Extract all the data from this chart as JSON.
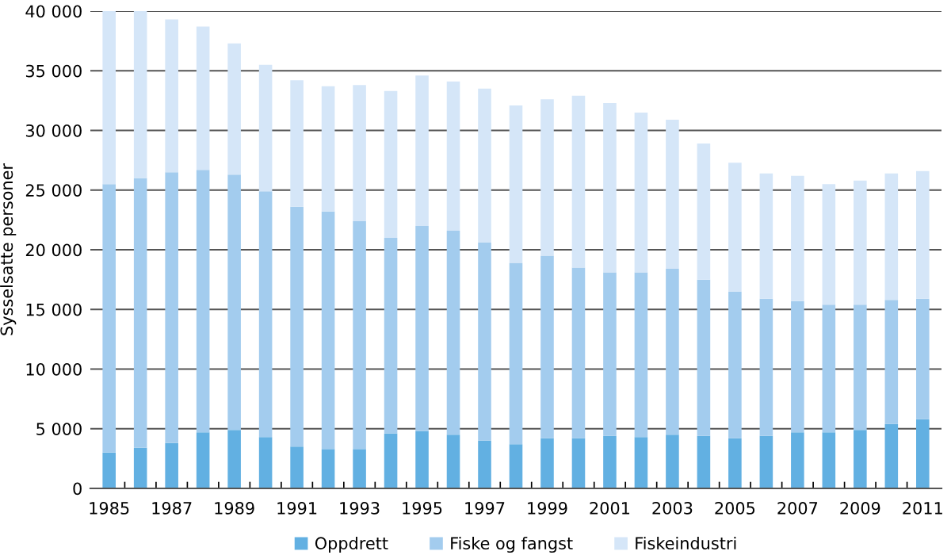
{
  "chart_data": {
    "type": "bar",
    "stacked": true,
    "ylabel": "Sysselsatte personer",
    "categories": [
      "1985",
      null,
      "1987",
      null,
      "1989",
      null,
      "1991",
      null,
      "1993",
      null,
      "1995",
      null,
      "1997",
      null,
      "1999",
      null,
      "2001",
      null,
      "2003",
      null,
      "2005",
      null,
      "2007",
      null,
      "2009",
      null,
      "2011"
    ],
    "series": [
      {
        "name": "Oppdrett",
        "color": "#62b0e2",
        "values": [
          3000,
          3400,
          3800,
          4700,
          4900,
          4300,
          3500,
          3300,
          3300,
          4600,
          4800,
          4500,
          4000,
          3700,
          4200,
          4200,
          4400,
          4300,
          4500,
          4400,
          4200,
          4400,
          4700,
          4700,
          4900,
          5400,
          5800
        ]
      },
      {
        "name": "Fiske og fangst",
        "color": "#a3ccee",
        "values": [
          22500,
          22600,
          22700,
          22000,
          21400,
          20600,
          20100,
          19900,
          19100,
          16400,
          17200,
          17100,
          16600,
          15200,
          15300,
          14300,
          13700,
          13800,
          13900,
          13100,
          12300,
          11500,
          11000,
          10700,
          10500,
          10400,
          10100
        ]
      },
      {
        "name": "Fiskeindustri",
        "color": "#d5e6f8",
        "values": [
          14500,
          14000,
          12800,
          12000,
          11000,
          10600,
          10600,
          10500,
          11400,
          12300,
          12600,
          12500,
          12900,
          13200,
          13100,
          14400,
          14200,
          13400,
          12500,
          11400,
          10800,
          10500,
          10500,
          10100,
          10400,
          10600,
          10700
        ]
      }
    ],
    "ylim": [
      0,
      40000
    ],
    "yticks": [
      0,
      {
        "value": 5000,
        "label": "5 000"
      },
      {
        "value": 10000,
        "label": "10 000"
      },
      {
        "value": 15000,
        "label": "15 000"
      },
      {
        "value": 20000,
        "label": "20 000"
      },
      {
        "value": 25000,
        "label": "25 000"
      },
      {
        "value": 30000,
        "label": "30 000"
      },
      {
        "value": 35000,
        "label": "35 000"
      },
      {
        "value": 40000,
        "label": "40 000"
      }
    ],
    "grid": "y",
    "legend": "bottom"
  }
}
